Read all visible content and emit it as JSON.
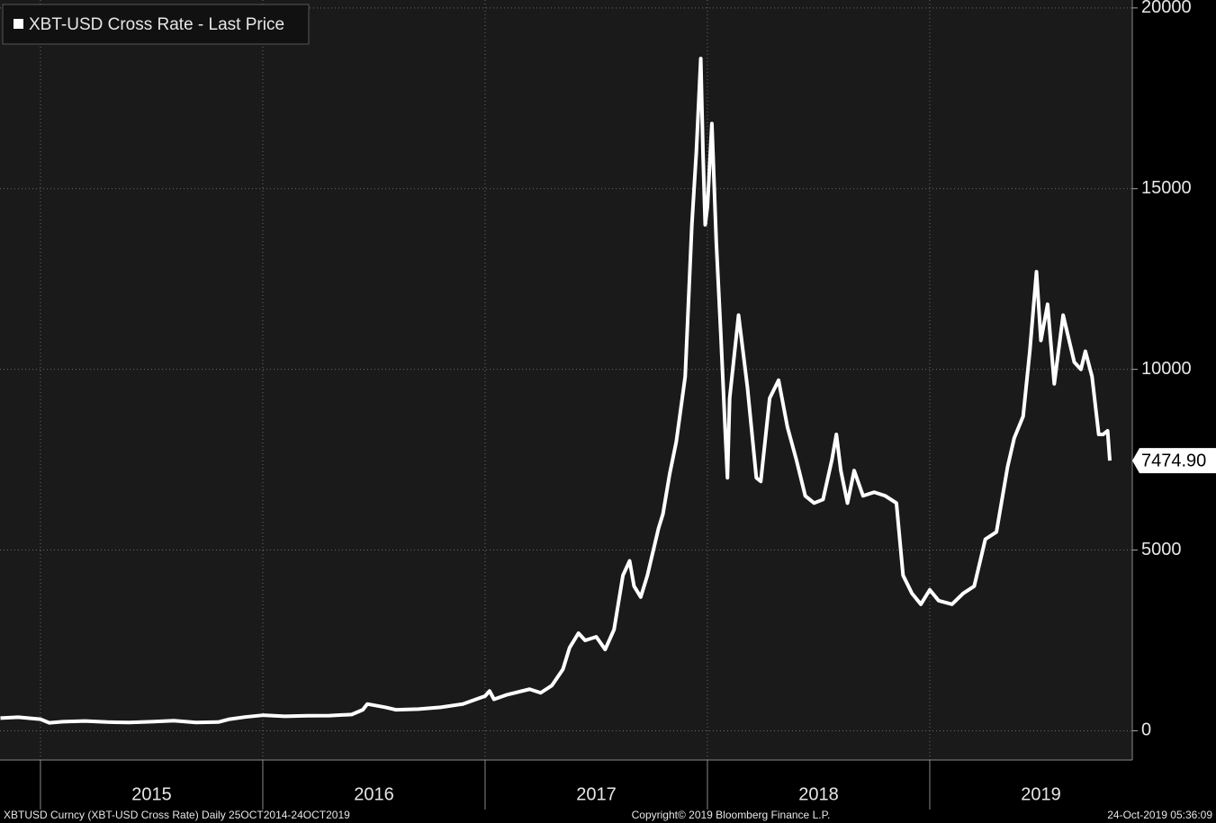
{
  "chart_data": {
    "type": "line",
    "series": [
      {
        "name": "XBT-USD Cross Rate - Last Price",
        "color": "#ffffff",
        "x": [
          2014.82,
          2014.9,
          2015.0,
          2015.04,
          2015.1,
          2015.2,
          2015.3,
          2015.4,
          2015.5,
          2015.6,
          2015.7,
          2015.8,
          2015.85,
          2015.92,
          2016.0,
          2016.1,
          2016.2,
          2016.3,
          2016.4,
          2016.45,
          2016.47,
          2016.55,
          2016.6,
          2016.7,
          2016.8,
          2016.9,
          2017.0,
          2017.02,
          2017.04,
          2017.1,
          2017.2,
          2017.25,
          2017.3,
          2017.35,
          2017.38,
          2017.42,
          2017.45,
          2017.5,
          2017.54,
          2017.58,
          2017.62,
          2017.65,
          2017.67,
          2017.7,
          2017.73,
          2017.78,
          2017.8,
          2017.83,
          2017.86,
          2017.9,
          2017.93,
          2017.95,
          2017.96,
          2017.97,
          2017.98,
          2017.99,
          2018.0,
          2018.02,
          2018.04,
          2018.06,
          2018.08,
          2018.09,
          2018.1,
          2018.14,
          2018.18,
          2018.22,
          2018.24,
          2018.28,
          2018.32,
          2018.36,
          2018.4,
          2018.44,
          2018.48,
          2018.52,
          2018.56,
          2018.58,
          2018.6,
          2018.63,
          2018.66,
          2018.7,
          2018.75,
          2018.8,
          2018.85,
          2018.88,
          2018.92,
          2018.96,
          2019.0,
          2019.04,
          2019.1,
          2019.15,
          2019.2,
          2019.25,
          2019.3,
          2019.35,
          2019.38,
          2019.42,
          2019.45,
          2019.48,
          2019.5,
          2019.53,
          2019.56,
          2019.6,
          2019.65,
          2019.68,
          2019.7,
          2019.73,
          2019.76,
          2019.78,
          2019.8,
          2019.81
        ],
        "values": [
          350,
          375,
          320,
          220,
          250,
          270,
          240,
          230,
          250,
          280,
          230,
          240,
          320,
          380,
          430,
          400,
          415,
          420,
          450,
          580,
          740,
          650,
          580,
          600,
          650,
          740,
          960,
          1100,
          870,
          1000,
          1150,
          1050,
          1250,
          1700,
          2300,
          2700,
          2500,
          2600,
          2250,
          2800,
          4300,
          4700,
          4000,
          3700,
          4300,
          5600,
          6000,
          7100,
          8000,
          9800,
          14000,
          16000,
          17300,
          18600,
          16000,
          14000,
          14500,
          16800,
          13500,
          11000,
          8300,
          7000,
          9200,
          11500,
          9500,
          7000,
          6900,
          9200,
          9700,
          8400,
          7500,
          6500,
          6300,
          6400,
          7500,
          8200,
          7200,
          6300,
          7200,
          6500,
          6600,
          6500,
          6300,
          4300,
          3800,
          3500,
          3900,
          3600,
          3500,
          3800,
          4000,
          5300,
          5500,
          7300,
          8100,
          8700,
          10500,
          12700,
          10800,
          11800,
          9600,
          11500,
          10200,
          10000,
          10500,
          9800,
          8200,
          8200,
          8300,
          7474.9
        ]
      }
    ],
    "last_price": {
      "value": 7474.9,
      "label": "7474.90"
    },
    "xlim": [
      2014.818,
      2019.911
    ],
    "xticks": [
      {
        "value": 2015.5,
        "label": "2015"
      },
      {
        "value": 2016.5,
        "label": "2016"
      },
      {
        "value": 2017.5,
        "label": "2017"
      },
      {
        "value": 2018.5,
        "label": "2018"
      },
      {
        "value": 2019.5,
        "label": "2019"
      }
    ],
    "x_gridlines": [
      2015,
      2016,
      2017,
      2018,
      2019
    ],
    "ylim": [
      -810,
      20220
    ],
    "yticks": [
      0,
      5000,
      10000,
      15000,
      20000
    ],
    "grid": true,
    "footer_left": "XBTUSD Curncy (XBT-USD Cross Rate)  Daily 25OCT2014-24OCT2019",
    "footer_center": "Copyright© 2019 Bloomberg Finance L.P.",
    "footer_right": "24-Oct-2019 05:36:09"
  }
}
